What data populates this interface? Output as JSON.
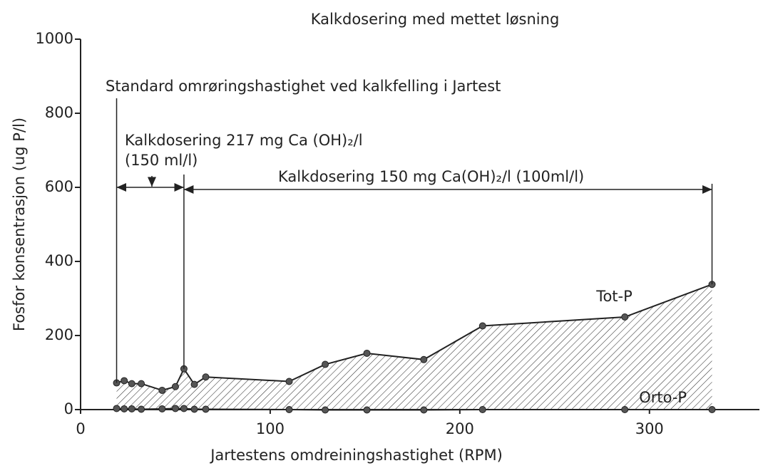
{
  "chart_data": {
    "type": "area",
    "title": "Kalkdosering med mettet løsning",
    "x_label": "Jartestens omdreiningshastighet (RPM)",
    "y_label": "Fosfor konsentrasjon (ug P/l)",
    "x": [
      19,
      23,
      27,
      32,
      43,
      50,
      54.5,
      60,
      66,
      110,
      129,
      151,
      181,
      212,
      287,
      333
    ],
    "series": [
      {
        "name": "Tot-P",
        "color": "#222222",
        "values": [
          72,
          78,
          70,
          70,
          52,
          62,
          110,
          68,
          88,
          76,
          122,
          152,
          135,
          226,
          250,
          338
        ]
      },
      {
        "name": "Orto-P",
        "color": "#222222",
        "values": [
          3,
          2,
          2,
          1,
          2,
          3,
          3,
          1,
          1,
          0,
          -1,
          -1,
          -1,
          0,
          0,
          0
        ]
      }
    ],
    "xlim": [
      0,
      358
    ],
    "ylim": [
      0,
      1000
    ],
    "xticks": [
      0,
      100,
      200,
      300
    ],
    "yticks": [
      0,
      200,
      400,
      600,
      800,
      1000
    ],
    "annotations": [
      "Standard omrøringshastighet ved kalkfelling i Jartest",
      "Kalkdosering 217 mg Ca (OH)₂/l",
      "(150 ml/l)",
      "Kalkdosering 150 mg Ca(OH)₂/l (100ml/l)"
    ]
  }
}
